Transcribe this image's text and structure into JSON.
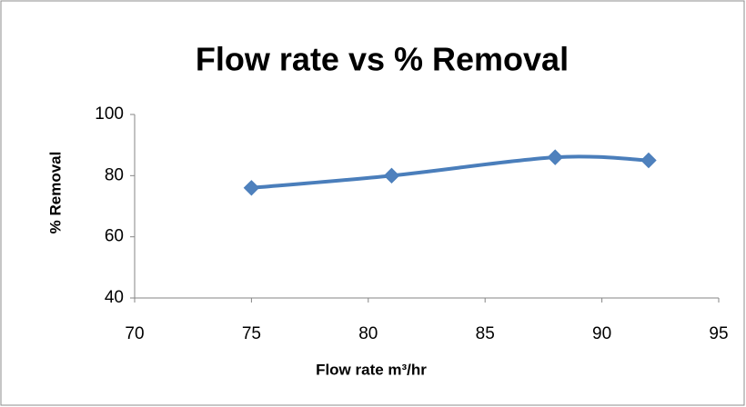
{
  "chart_data": {
    "type": "line",
    "title": "Flow rate  vs % Removal",
    "x_label": "Flow rate m³/hr",
    "y_label": "% Removal",
    "x": [
      75,
      81,
      88,
      92
    ],
    "series": [
      {
        "name": "% Removal",
        "color": "#4a7ebb",
        "values": [
          76,
          80,
          86,
          85
        ]
      }
    ],
    "xlim": [
      70,
      95
    ],
    "xticks": [
      70,
      75,
      80,
      85,
      90,
      95
    ],
    "ylim": [
      40,
      100
    ],
    "yticks": [
      40,
      60,
      80,
      100
    ],
    "smooth": true,
    "marker": "diamond",
    "grid": false
  }
}
